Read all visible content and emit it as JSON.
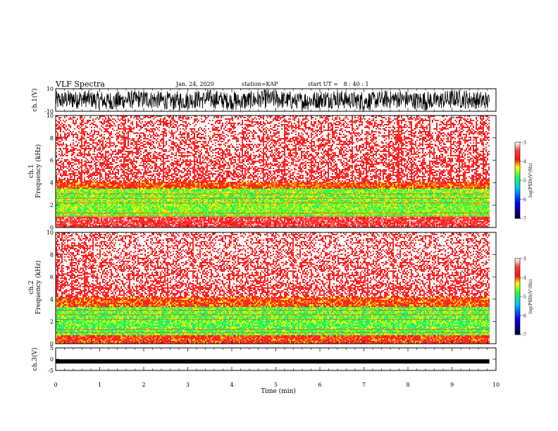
{
  "header": {
    "title": "VLF Spectra",
    "date": "Jan. 24, 2020",
    "station": "station=KAP",
    "start_ut": "start UT =   8 : 40 : 1"
  },
  "colorbar": {
    "label": "log(PSD)(V²/Hz)",
    "ticks": [
      "-3",
      "-4",
      "-5",
      "-6",
      "-7"
    ],
    "colors": [
      "#ffffff",
      "#ff2020",
      "#ffff00",
      "#00ff40",
      "#00d0ff",
      "#0000ff",
      "#000040"
    ]
  },
  "chart_data": [
    {
      "type": "line",
      "ylabel": "ch.1(V)",
      "ylim": [
        -10,
        10
      ],
      "yticks": [
        "10",
        "-10"
      ],
      "description_series": "waveform amplitude, dense oscillation",
      "xlim": [
        0,
        10
      ],
      "data_end_min": 9.85
    },
    {
      "type": "heatmap",
      "ylabel": "ch.1\nFrequency (kHz)",
      "ylabel_lines": [
        "ch.1",
        "Frequency (kHz)"
      ],
      "ylim": [
        0,
        10
      ],
      "yticks": [
        "0",
        "2",
        "4",
        "6",
        "8",
        "10"
      ],
      "xlim": [
        0,
        10
      ],
      "data_end_min": 9.85,
      "bands": [
        {
          "f_lo": 0.0,
          "f_hi": 1.0,
          "level": -3.5
        },
        {
          "f_lo": 1.0,
          "f_hi": 3.5,
          "level": -4.6
        },
        {
          "f_lo": 3.5,
          "f_hi": 4.2,
          "level": -3.9
        },
        {
          "f_lo": 4.2,
          "f_hi": 10.0,
          "level": -3.3
        }
      ]
    },
    {
      "type": "heatmap",
      "ylabel": "ch.2\nFrequency (kHz)",
      "ylabel_lines": [
        "ch.2",
        "Frequency (kHz)"
      ],
      "ylim": [
        0,
        10
      ],
      "yticks": [
        "0",
        "2",
        "4",
        "6",
        "8",
        "10"
      ],
      "xlim": [
        0,
        10
      ],
      "data_end_min": 9.85,
      "bands": [
        {
          "f_lo": 0.0,
          "f_hi": 0.8,
          "level": -3.8
        },
        {
          "f_lo": 0.8,
          "f_hi": 3.3,
          "level": -4.7
        },
        {
          "f_lo": 3.3,
          "f_hi": 4.2,
          "level": -3.9
        },
        {
          "f_lo": 4.2,
          "f_hi": 10.0,
          "level": -3.3
        }
      ]
    },
    {
      "type": "line",
      "ylabel": "ch.3(V)",
      "ylim": [
        -5,
        5
      ],
      "yticks": [
        "5",
        "0",
        "-5"
      ],
      "xlim": [
        0,
        10
      ],
      "xlabel": "Time (min)",
      "xticks": [
        "0",
        "1",
        "2",
        "3",
        "4",
        "5",
        "6",
        "7",
        "8",
        "9",
        "10"
      ],
      "level_v": -1.0,
      "data_end_min": 9.85
    }
  ]
}
